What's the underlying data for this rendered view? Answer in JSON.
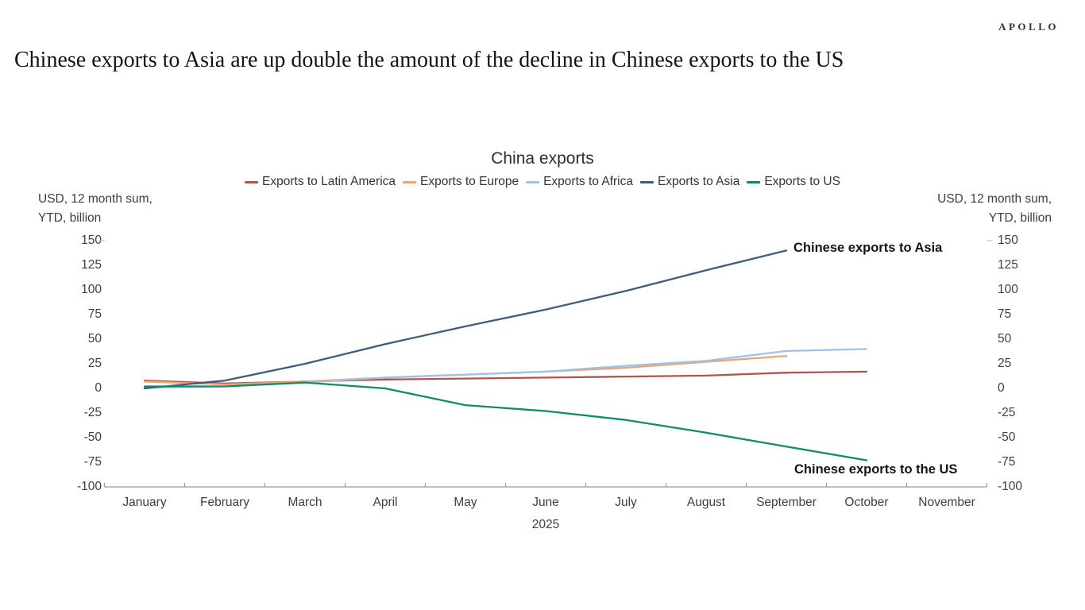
{
  "brand": {
    "logo_text": "APOLLO"
  },
  "headline": "Chinese exports to Asia are up double the amount of the decline in Chinese exports to the US",
  "chart": {
    "unit_label_left_line1": "USD, 12 month sum,",
    "unit_label_left_line2": "YTD, billion",
    "unit_label_right_line1": "USD, 12 month sum,",
    "unit_label_right_line2": "YTD, billion",
    "y_ticks": [
      "150",
      "125",
      "100",
      "75",
      "50",
      "25",
      "0",
      "-25",
      "-50",
      "-75",
      "-100"
    ],
    "x_ticks": [
      "January",
      "February",
      "March",
      "April",
      "May",
      "June",
      "July",
      "August",
      "September",
      "October",
      "November"
    ],
    "year_label": "2025"
  },
  "chart_data": {
    "type": "line",
    "title": "China exports",
    "xlabel": "2025",
    "ylabel": "USD, 12 month sum, YTD, billion",
    "x": [
      "January",
      "February",
      "March",
      "April",
      "May",
      "June",
      "July",
      "August",
      "September",
      "October",
      "November"
    ],
    "ylim": [
      -100,
      150
    ],
    "y_tick_step": 25,
    "grid": false,
    "legend_position": "top",
    "axis_color": "#9a9a9a",
    "series": [
      {
        "name": "Exports to Latin America",
        "color": "#b2544d",
        "values": [
          8,
          5,
          7,
          9,
          10,
          11,
          12,
          13,
          16,
          17
        ]
      },
      {
        "name": "Exports to Europe",
        "color": "#efa26c",
        "values": [
          7,
          4,
          7,
          11,
          14,
          17,
          21,
          27,
          33
        ]
      },
      {
        "name": "Exports to Africa",
        "color": "#9dc3e6",
        "values": [
          1,
          2,
          6,
          11,
          14,
          17,
          23,
          28,
          38,
          40
        ]
      },
      {
        "name": "Exports to Asia",
        "color": "#3e5c7e",
        "values": [
          0,
          8,
          25,
          45,
          63,
          80,
          99,
          120,
          140
        ]
      },
      {
        "name": "Exports to US",
        "color": "#0e8c6d",
        "values": [
          2,
          2,
          6,
          0,
          -17,
          -23,
          -32,
          -45,
          -59,
          -73
        ]
      }
    ],
    "annotations": [
      {
        "text": "Chinese exports to Asia",
        "series": "Exports to Asia"
      },
      {
        "text": "Chinese exports to the US",
        "series": "Exports to US"
      }
    ]
  }
}
